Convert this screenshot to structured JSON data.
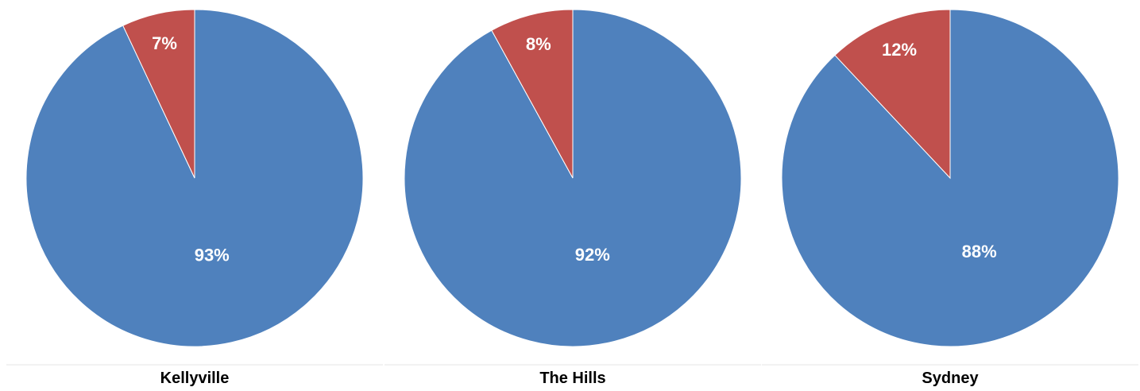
{
  "chart_data": [
    {
      "type": "pie",
      "title": "Kellyville",
      "slices": [
        {
          "label": "93%",
          "value": 93,
          "color": "#4F81BD"
        },
        {
          "label": "7%",
          "value": 7,
          "color": "#C0504D"
        }
      ]
    },
    {
      "type": "pie",
      "title": "The Hills",
      "slices": [
        {
          "label": "92%",
          "value": 92,
          "color": "#4F81BD"
        },
        {
          "label": "8%",
          "value": 8,
          "color": "#C0504D"
        }
      ]
    },
    {
      "type": "pie",
      "title": "Sydney",
      "slices": [
        {
          "label": "88%",
          "value": 88,
          "color": "#4F81BD"
        },
        {
          "label": "12%",
          "value": 12,
          "color": "#C0504D"
        }
      ]
    }
  ]
}
